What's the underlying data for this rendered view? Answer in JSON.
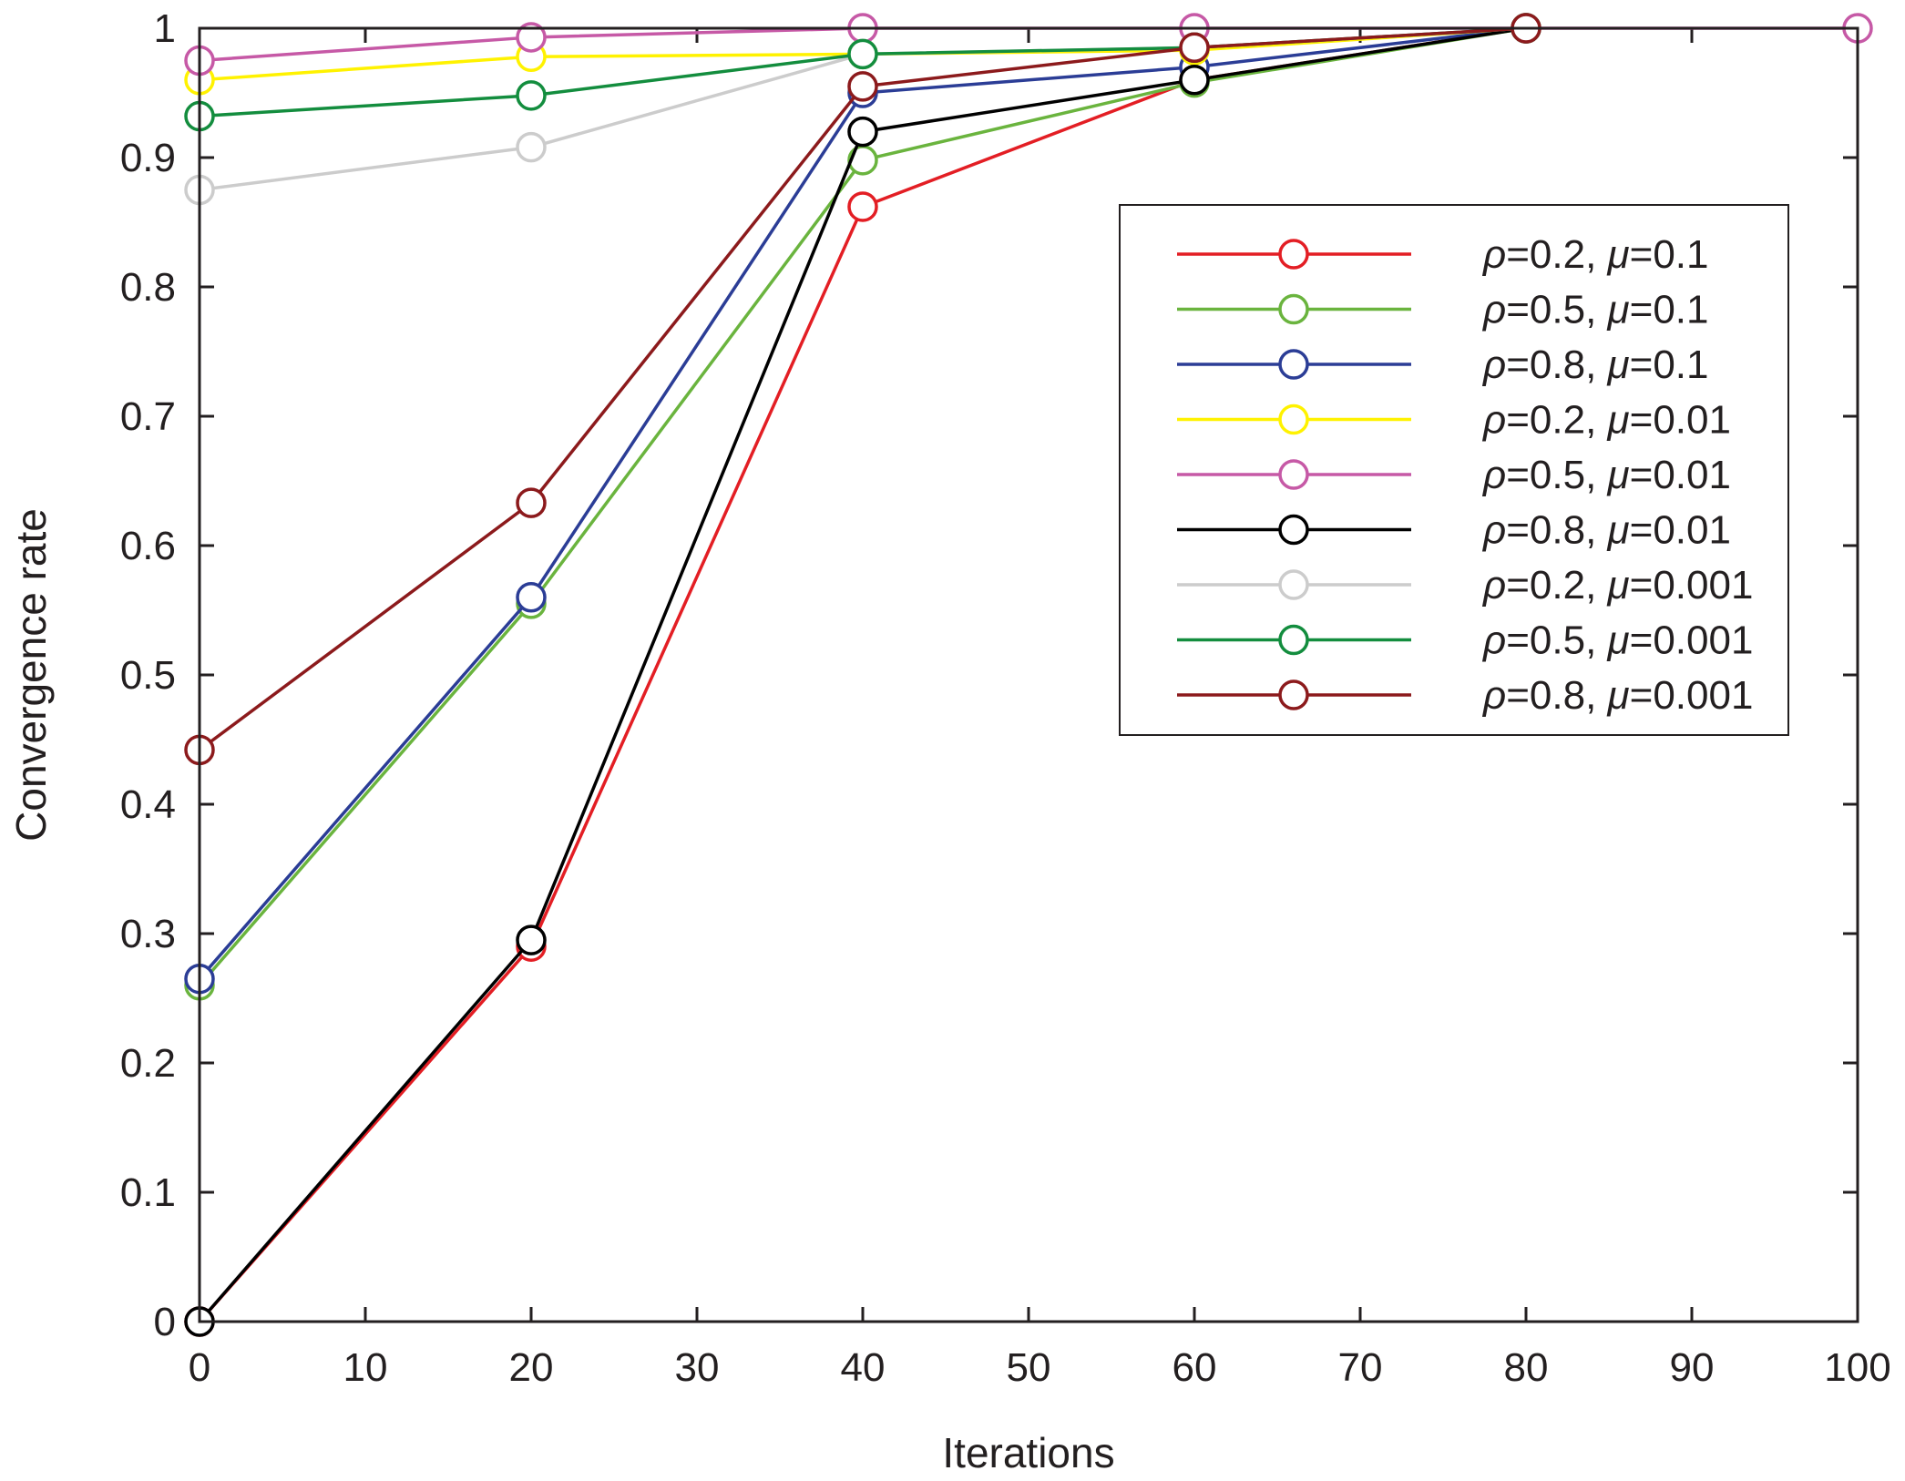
{
  "chart_data": {
    "type": "line",
    "title": "",
    "xlabel": "Iterations",
    "ylabel": "Convergence rate",
    "xlim": [
      0,
      100
    ],
    "ylim": [
      0,
      1
    ],
    "xticks": [
      0,
      10,
      20,
      30,
      40,
      50,
      60,
      70,
      80,
      90,
      100
    ],
    "xtick_labels": [
      "0",
      "10",
      "20",
      "30",
      "40",
      "50",
      "60",
      "70",
      "80",
      "90",
      "100"
    ],
    "yticks": [
      0,
      0.1,
      0.2,
      0.3,
      0.4,
      0.5,
      0.6,
      0.7,
      0.8,
      0.9,
      1
    ],
    "ytick_labels": [
      "0",
      "0.1",
      "0.2",
      "0.3",
      "0.4",
      "0.5",
      "0.6",
      "0.7",
      "0.8",
      "0.9",
      "1"
    ],
    "grid": false,
    "legend_position": "right",
    "x": [
      0,
      20,
      40,
      60,
      80,
      100
    ],
    "series": [
      {
        "name": "ρ=0.2, μ=0.1",
        "rho": "ρ",
        "rho_val": "=0.2, ",
        "mu": "μ",
        "mu_val": "=0.1",
        "color": "#e31e24",
        "values": [
          0,
          0.29,
          0.862,
          0.96,
          1,
          null
        ]
      },
      {
        "name": "ρ=0.5, μ=0.1",
        "rho": "ρ",
        "rho_val": "=0.5, ",
        "mu": "μ",
        "mu_val": "=0.1",
        "color": "#6ab43e",
        "values": [
          0.26,
          0.555,
          0.898,
          0.958,
          1,
          null
        ]
      },
      {
        "name": "ρ=0.8, μ=0.1",
        "rho": "ρ",
        "rho_val": "=0.8, ",
        "mu": "μ",
        "mu_val": "=0.1",
        "color": "#2b3d96",
        "values": [
          0.265,
          0.56,
          0.95,
          0.97,
          1,
          null
        ]
      },
      {
        "name": "ρ=0.2, μ=0.01",
        "rho": "ρ",
        "rho_val": "=0.2, ",
        "mu": "μ",
        "mu_val": "=0.01",
        "color": "#fff200",
        "values": [
          0.96,
          0.978,
          0.98,
          0.983,
          1,
          null
        ]
      },
      {
        "name": "ρ=0.5, μ=0.01",
        "rho": "ρ",
        "rho_val": "=0.5, ",
        "mu": "μ",
        "mu_val": "=0.01",
        "color": "#c659a6",
        "values": [
          0.975,
          0.993,
          1,
          1,
          1,
          1
        ]
      },
      {
        "name": "ρ=0.8, μ=0.01",
        "rho": "ρ",
        "rho_val": "=0.8, ",
        "mu": "μ",
        "mu_val": "=0.01",
        "color": "#000000",
        "values": [
          0,
          0.295,
          0.92,
          0.96,
          1,
          null
        ]
      },
      {
        "name": "ρ=0.2, μ=0.001",
        "rho": "ρ",
        "rho_val": "=0.2, ",
        "mu": "μ",
        "mu_val": "=0.001",
        "color": "#cccccc",
        "values": [
          0.875,
          0.908,
          0.98,
          0.985,
          1,
          null
        ]
      },
      {
        "name": "ρ=0.5, μ=0.001",
        "rho": "ρ",
        "rho_val": "=0.5, ",
        "mu": "μ",
        "mu_val": "=0.001",
        "color": "#138d3e",
        "values": [
          0.932,
          0.948,
          0.98,
          0.985,
          1,
          null
        ]
      },
      {
        "name": "ρ=0.8, μ=0.001",
        "rho": "ρ",
        "rho_val": "=0.8, ",
        "mu": "μ",
        "mu_val": "=0.001",
        "color": "#8c1a1c",
        "values": [
          0.442,
          0.633,
          0.955,
          0.985,
          1,
          null
        ]
      }
    ]
  }
}
